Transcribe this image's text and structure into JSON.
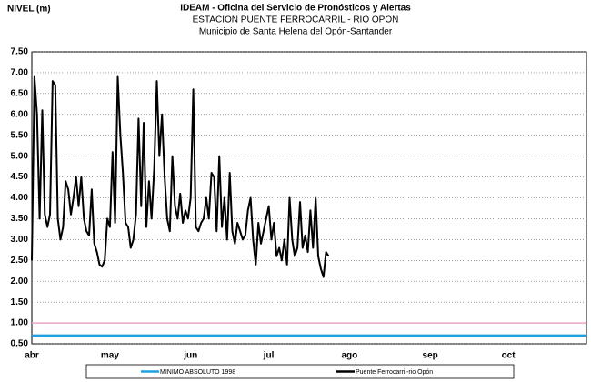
{
  "chart_data": {
    "type": "line",
    "title_lines": [
      "IDEAM - Oficina del Servicio de Pronósticos y Alertas",
      "ESTACION PUENTE FERROCARRIL - RIO OPON",
      "Municipio de Santa Helena del Opón-Santander"
    ],
    "ylabel": "NIVEL (m)",
    "categories": [
      "abr",
      null,
      null,
      null,
      null,
      null,
      null,
      null,
      null,
      null,
      null,
      null,
      null,
      null,
      null,
      null,
      null,
      null,
      null,
      null,
      null,
      null,
      null,
      null,
      null,
      null,
      null,
      null,
      null,
      null,
      "may",
      null,
      null,
      null,
      null,
      null,
      null,
      null,
      null,
      null,
      null,
      null,
      null,
      null,
      null,
      null,
      null,
      null,
      null,
      null,
      null,
      null,
      null,
      null,
      null,
      null,
      null,
      null,
      null,
      null,
      null,
      "jun",
      null,
      null,
      null,
      null,
      null,
      null,
      null,
      null,
      null,
      null,
      null,
      null,
      null,
      null,
      null,
      null,
      null,
      null,
      null,
      null,
      null,
      null,
      null,
      null,
      null,
      null,
      null,
      null,
      null,
      "jul",
      null,
      null,
      null,
      null,
      null,
      null,
      null,
      null,
      null,
      null,
      null,
      null,
      null,
      null,
      null,
      null,
      null,
      null,
      null,
      null,
      null,
      null,
      null,
      null,
      null,
      null,
      null,
      null,
      null,
      null,
      "ago",
      null,
      null,
      null,
      null,
      null,
      null,
      null,
      null,
      null,
      null,
      null,
      null,
      null,
      null,
      null,
      null,
      null,
      null,
      null,
      null,
      null,
      null,
      null,
      null,
      null,
      null,
      null,
      null,
      null,
      null,
      "sep",
      null,
      null,
      null,
      null,
      null,
      null,
      null,
      null,
      null,
      null,
      null,
      null,
      null,
      null,
      null,
      null,
      null,
      null,
      null,
      null,
      null,
      null,
      null,
      null,
      null,
      null,
      null,
      null,
      null,
      "oct",
      null,
      null,
      null,
      null,
      null,
      null,
      null,
      null,
      null,
      null,
      null,
      null,
      null,
      null,
      null,
      null,
      null,
      null,
      null,
      null,
      null,
      null,
      null,
      null,
      null,
      null,
      null,
      null,
      null,
      null
    ],
    "series": [
      {
        "name": "Puente Ferrocarril-rio Opón",
        "color": "#000000",
        "values": [
          2.5,
          6.9,
          6.0,
          3.5,
          6.1,
          3.6,
          3.3,
          3.6,
          6.8,
          6.7,
          3.5,
          3.0,
          3.3,
          4.4,
          4.2,
          3.6,
          4.0,
          4.5,
          3.8,
          4.5,
          3.5,
          3.2,
          3.1,
          4.2,
          2.9,
          2.7,
          2.4,
          2.35,
          2.5,
          3.5,
          3.3,
          5.1,
          3.4,
          6.9,
          5.5,
          4.6,
          3.4,
          3.3,
          2.8,
          3.0,
          3.6,
          5.9,
          3.8,
          5.8,
          3.3,
          4.4,
          3.5,
          4.7,
          6.8,
          5.0,
          6.0,
          4.5,
          3.5,
          3.2,
          5.0,
          3.8,
          3.5,
          4.1,
          3.4,
          3.7,
          3.5,
          4.0,
          6.6,
          3.3,
          3.2,
          3.4,
          3.5,
          4.0,
          3.5,
          4.6,
          4.5,
          3.2,
          5.0,
          3.3,
          4.0,
          3.0,
          4.6,
          3.2,
          2.9,
          3.4,
          3.2,
          3.0,
          3.1,
          3.7,
          4.0,
          3.0,
          2.4,
          3.4,
          2.9,
          3.2,
          3.5,
          3.8,
          3.0,
          3.4,
          2.6,
          2.8,
          2.5,
          3.0,
          2.4,
          4.0,
          3.0,
          2.6,
          2.8,
          3.9,
          2.8,
          3.1,
          2.7,
          3.7,
          2.8,
          4.0,
          2.6,
          2.3,
          2.1,
          2.7,
          2.6,
          null,
          null,
          null,
          null,
          null,
          null,
          null,
          null,
          null,
          null,
          null,
          null,
          null,
          null,
          null,
          null,
          null,
          null,
          null,
          null,
          null,
          null,
          null,
          null,
          null,
          null,
          null,
          null,
          null,
          null,
          null,
          null,
          null,
          null,
          null,
          null,
          null,
          null,
          null,
          null,
          null,
          null,
          null,
          null,
          null,
          null,
          null,
          null,
          null,
          null,
          null,
          null,
          null,
          null,
          null,
          null,
          null,
          null,
          null,
          null,
          null,
          null,
          null,
          null,
          null,
          null,
          null,
          null,
          null,
          null,
          null,
          null,
          null,
          null,
          null,
          null,
          null,
          null,
          null,
          null,
          null,
          null,
          null,
          null,
          null,
          null,
          null,
          null,
          null,
          null,
          null,
          null,
          null,
          null,
          null,
          null,
          null,
          null,
          null
        ]
      }
    ],
    "reference_lines": [
      {
        "name": "MINIMO ABSOLUTO 1998",
        "value": 0.7,
        "color": "#1ea0e0"
      },
      {
        "value": 1.0,
        "color": "#e8a6c8"
      }
    ],
    "ylim": [
      0.5,
      7.5
    ],
    "yticks": [
      {
        "value": 0.5,
        "label": "0.50"
      },
      {
        "value": 1,
        "label": "1.00"
      },
      {
        "value": 1.5,
        "label": "1.50"
      },
      {
        "value": 2,
        "label": "2.00"
      },
      {
        "value": 2.5,
        "label": "2.50"
      },
      {
        "value": 3,
        "label": "3.00"
      },
      {
        "value": 3.5,
        "label": "3.50"
      },
      {
        "value": 4,
        "label": "4.00"
      },
      {
        "value": 4.5,
        "label": "4.50"
      },
      {
        "value": 5,
        "label": "5.00"
      },
      {
        "value": 5.5,
        "label": "5.50"
      },
      {
        "value": 6,
        "label": "6.00"
      },
      {
        "value": 6.5,
        "label": "6.50"
      },
      {
        "value": 7,
        "label": "7.00"
      },
      {
        "value": 7.5,
        "label": "7.50"
      }
    ],
    "grid": true
  }
}
